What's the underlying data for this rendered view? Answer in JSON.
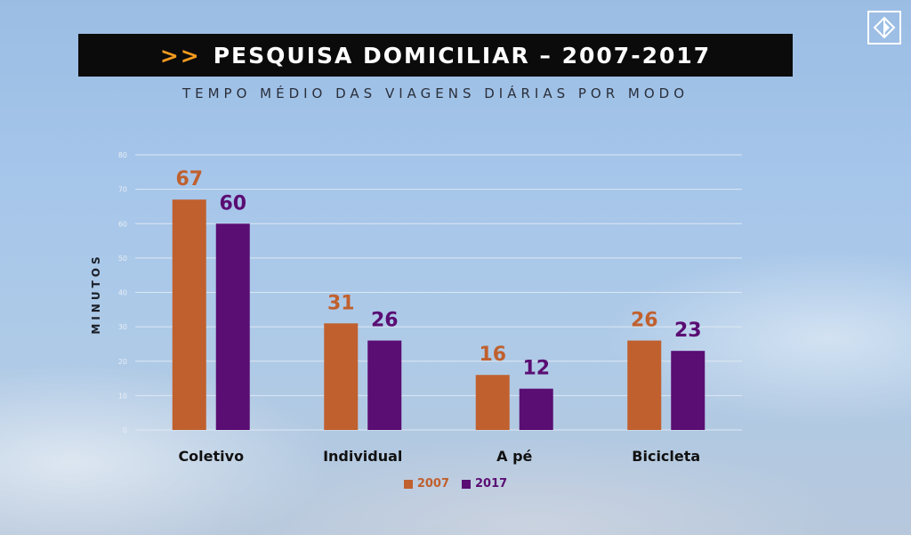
{
  "header": {
    "chevrons": ">>",
    "title": "PESQUISA DOMICILIAR – 2007-2017",
    "subtitle": "TEMPO MÉDIO DAS VIAGENS DIÁRIAS POR MODO"
  },
  "logo": {
    "icon": "metro-logo-icon"
  },
  "colors": {
    "series_2007": "#c0602e",
    "series_2017": "#5a0d73",
    "gridline": "#dde8f3",
    "category_text": "#111111"
  },
  "chart_data": {
    "type": "bar",
    "title": "TEMPO MÉDIO DAS VIAGENS DIÁRIAS POR MODO",
    "xlabel": "",
    "ylabel": "MINUTOS",
    "ylim": [
      0,
      80
    ],
    "yticks": [
      0,
      10,
      20,
      30,
      40,
      50,
      60,
      70,
      80
    ],
    "grid": true,
    "legend_position": "bottom",
    "categories": [
      "Coletivo",
      "Individual",
      "A pé",
      "Bicicleta"
    ],
    "series": [
      {
        "name": "2007",
        "values": [
          67,
          31,
          16,
          26
        ]
      },
      {
        "name": "2017",
        "values": [
          60,
          26,
          12,
          23
        ]
      }
    ]
  }
}
